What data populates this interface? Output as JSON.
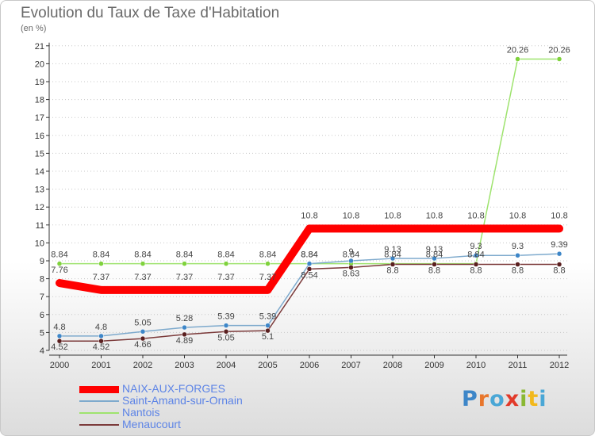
{
  "chart_data": {
    "type": "line",
    "title": "Evolution du Taux de Taxe d'Habitation",
    "subtitle": "(en %)",
    "xlabel": "",
    "ylabel": "(en %)",
    "x": [
      "2000",
      "2001",
      "2002",
      "2003",
      "2004",
      "2005",
      "2006",
      "2007",
      "2008",
      "2009",
      "2010",
      "2011",
      "2012"
    ],
    "ylim": [
      4,
      21
    ],
    "yticks": [
      "4",
      "5",
      "6",
      "7",
      "8",
      "9",
      "10",
      "11",
      "12",
      "13",
      "14",
      "15",
      "16",
      "17",
      "18",
      "19",
      "20",
      "21"
    ],
    "series": [
      {
        "name": "NAIX-AUX-FORGES",
        "color": "#ff0000",
        "values": [
          7.76,
          7.37,
          7.37,
          7.37,
          7.37,
          7.37,
          10.8,
          10.8,
          10.8,
          10.8,
          10.8,
          10.8,
          10.8
        ],
        "labels": [
          "7.76",
          "7.37",
          "7.37",
          "7.37",
          "7.37",
          "7.37",
          "10.8",
          "10.8",
          "10.8",
          "10.8",
          "10.8",
          "10.8",
          "10.8"
        ]
      },
      {
        "name": "Saint-Amand-sur-Ornain",
        "color": "#7eaacd",
        "values": [
          4.8,
          4.8,
          5.05,
          5.28,
          5.39,
          5.39,
          8.84,
          9.0,
          9.13,
          9.13,
          9.3,
          9.3,
          9.39
        ],
        "labels": [
          "4.8",
          "4.8",
          "5.05",
          "5.28",
          "5.39",
          "5.39",
          "8.84",
          "9",
          "9.13",
          "9.13",
          "9.3",
          "9.3",
          "9.39"
        ]
      },
      {
        "name": "Nantois",
        "color": "#9ee36e",
        "values": [
          8.84,
          8.84,
          8.84,
          8.84,
          8.84,
          8.84,
          8.84,
          8.84,
          8.84,
          8.84,
          8.84,
          20.26,
          20.26
        ],
        "labels": [
          "8.84",
          "8.84",
          "8.84",
          "8.84",
          "8.84",
          "8.84",
          "8.84",
          "8.84",
          "8.84",
          "8.84",
          "8.84",
          "20.26",
          "20.26"
        ]
      },
      {
        "name": "Menaucourt",
        "color": "#7b3a3a",
        "values": [
          4.52,
          4.52,
          4.66,
          4.89,
          5.05,
          5.1,
          8.54,
          8.63,
          8.8,
          8.8,
          8.8,
          8.8,
          8.8
        ],
        "labels": [
          "4.52",
          "4.52",
          "4.66",
          "4.89",
          "5.05",
          "5.1",
          "8.54",
          "8.63",
          "8.8",
          "8.8",
          "8.8",
          "8.8",
          "8.8"
        ]
      }
    ]
  },
  "logo": {
    "letters": [
      "P",
      "r",
      "o",
      "x",
      "i",
      "t",
      "i"
    ]
  }
}
